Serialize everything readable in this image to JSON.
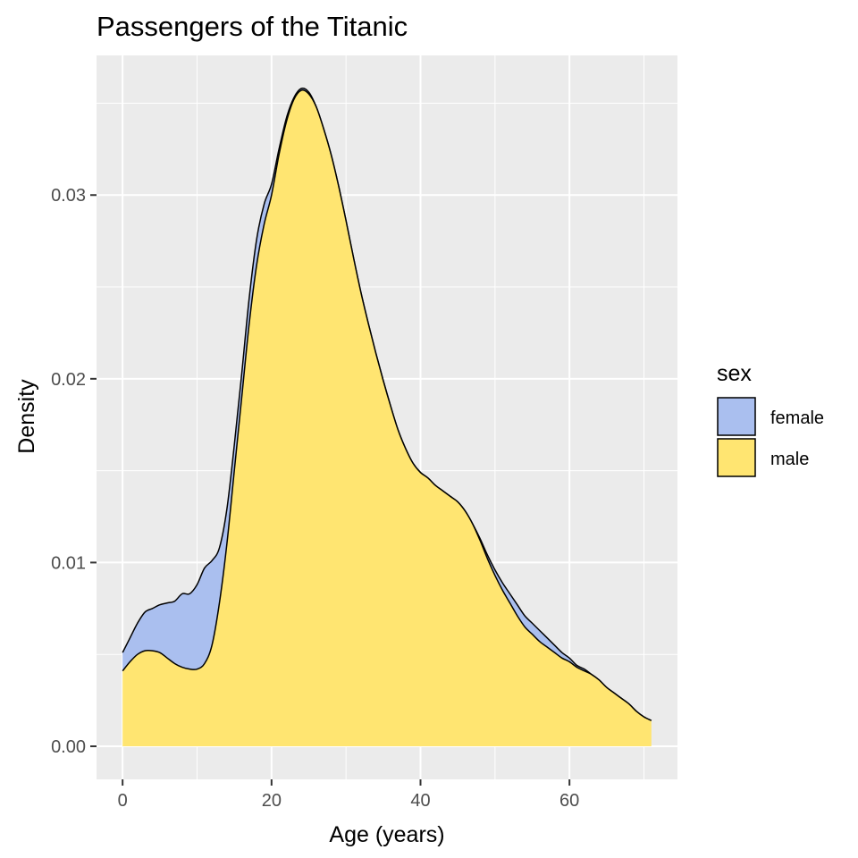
{
  "chart_data": {
    "type": "area",
    "title": "Passengers of the Titanic",
    "xlabel": "Age (years)",
    "ylabel": "Density",
    "xlim": [
      -3.5,
      74.5
    ],
    "ylim": [
      -0.0018,
      0.0376
    ],
    "x_ticks": [
      0,
      20,
      40,
      60
    ],
    "x_tick_labels": [
      "0",
      "20",
      "40",
      "60"
    ],
    "y_ticks": [
      0,
      0.01,
      0.02,
      0.03
    ],
    "y_tick_labels": [
      "0.00",
      "0.01",
      "0.02",
      "0.03"
    ],
    "stacked": true,
    "grid": true,
    "legend": {
      "title": "sex",
      "placement": "right"
    },
    "x": [
      0,
      1,
      2,
      3,
      4,
      5,
      6,
      7,
      8,
      9,
      10,
      11,
      12,
      13,
      14,
      15,
      16,
      17,
      18,
      19,
      20,
      21,
      22,
      23,
      24,
      25,
      26,
      27,
      28,
      29,
      30,
      31,
      32,
      33,
      34,
      35,
      36,
      37,
      38,
      39,
      40,
      41,
      42,
      43,
      44,
      45,
      46,
      47,
      48,
      49,
      50,
      51,
      52,
      53,
      54,
      55,
      56,
      57,
      58,
      59,
      60,
      61,
      62,
      63,
      64,
      65,
      66,
      67,
      68,
      69,
      70,
      71
    ],
    "series": [
      {
        "name": "female",
        "color": "#aabfef",
        "values": [
          0.001,
          0.0013,
          0.0017,
          0.0021,
          0.0023,
          0.0026,
          0.003,
          0.0034,
          0.004,
          0.0041,
          0.0046,
          0.0052,
          0.0046,
          0.003,
          0.0019,
          0.0014,
          0.0013,
          0.0014,
          0.0014,
          0.0011,
          0.0006,
          0.0003,
          0.0002,
          0.0001,
          0.0001,
          0.0001,
          0.0,
          0.0,
          0.0,
          0.0,
          0.0,
          0.0,
          0.0,
          0.0,
          0.0,
          0.0,
          0.0,
          0.0,
          0.0,
          0.0,
          0.0,
          0.0,
          0.0,
          0.0,
          0.0,
          0.0,
          0.0,
          0.0,
          0.0001,
          0.0002,
          0.0003,
          0.0004,
          0.0005,
          0.0006,
          0.0006,
          0.0006,
          0.0006,
          0.0005,
          0.0004,
          0.0003,
          0.0002,
          0.0001,
          0.0001,
          0.0,
          0.0,
          0.0,
          0.0,
          0.0,
          0.0,
          0.0,
          0.0,
          0.0
        ]
      },
      {
        "name": "male",
        "color": "#ffe571",
        "values": [
          0.0041,
          0.0046,
          0.005,
          0.0052,
          0.0052,
          0.0051,
          0.0048,
          0.0045,
          0.0043,
          0.0042,
          0.0042,
          0.0045,
          0.0055,
          0.0078,
          0.011,
          0.015,
          0.019,
          0.023,
          0.0262,
          0.0284,
          0.03,
          0.0322,
          0.034,
          0.0352,
          0.0357,
          0.0355,
          0.0348,
          0.0336,
          0.0322,
          0.0305,
          0.0286,
          0.0266,
          0.0247,
          0.023,
          0.0214,
          0.0199,
          0.0185,
          0.0172,
          0.0162,
          0.0154,
          0.0149,
          0.0146,
          0.0142,
          0.0139,
          0.0136,
          0.0133,
          0.0128,
          0.0121,
          0.0112,
          0.0102,
          0.0093,
          0.0085,
          0.0078,
          0.0071,
          0.0065,
          0.0061,
          0.0057,
          0.0054,
          0.0051,
          0.0048,
          0.0046,
          0.0043,
          0.0041,
          0.0039,
          0.0036,
          0.0032,
          0.0029,
          0.0026,
          0.0023,
          0.0019,
          0.0016,
          0.0014
        ]
      }
    ]
  }
}
